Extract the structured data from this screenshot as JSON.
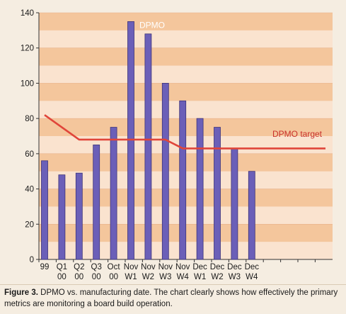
{
  "chart_data": {
    "type": "bar",
    "categories": [
      [
        "99",
        ""
      ],
      [
        "Q1",
        "00"
      ],
      [
        "Q2",
        "00"
      ],
      [
        "Q3",
        "00"
      ],
      [
        "Oct",
        "00"
      ],
      [
        "Nov",
        "W1"
      ],
      [
        "Nov",
        "W2"
      ],
      [
        "Nov",
        "W3"
      ],
      [
        "Nov",
        "W4"
      ],
      [
        "Dec",
        "W1"
      ],
      [
        "Dec",
        "W2"
      ],
      [
        "Dec",
        "W3"
      ],
      [
        "Dec",
        "W4"
      ]
    ],
    "series": [
      {
        "name": "DPMO",
        "type": "bar",
        "values": [
          56,
          48,
          49,
          65,
          75,
          135,
          128,
          100,
          90,
          80,
          75,
          63,
          50
        ]
      },
      {
        "name": "DPMO target",
        "type": "line",
        "values": [
          82,
          75,
          68,
          68,
          68,
          68,
          68,
          68,
          63,
          63,
          63,
          63,
          63
        ]
      }
    ],
    "ylim": [
      0,
      140
    ],
    "yticks": [
      0,
      20,
      40,
      60,
      80,
      100,
      120,
      140
    ],
    "colors": {
      "bar": "#6b5fb8",
      "bar_edge": "#3c3278",
      "target": "#e0453a",
      "band_dark": "#f4c69c",
      "band_light": "#fae3cf",
      "bar_label": "#ffffff",
      "target_label": "#c8302a"
    }
  },
  "caption": {
    "label": "Figure 3.",
    "text": "DPMO vs. manufacturing date. The chart clearly shows how effectively the primary metrics are monitoring a board build operation."
  }
}
